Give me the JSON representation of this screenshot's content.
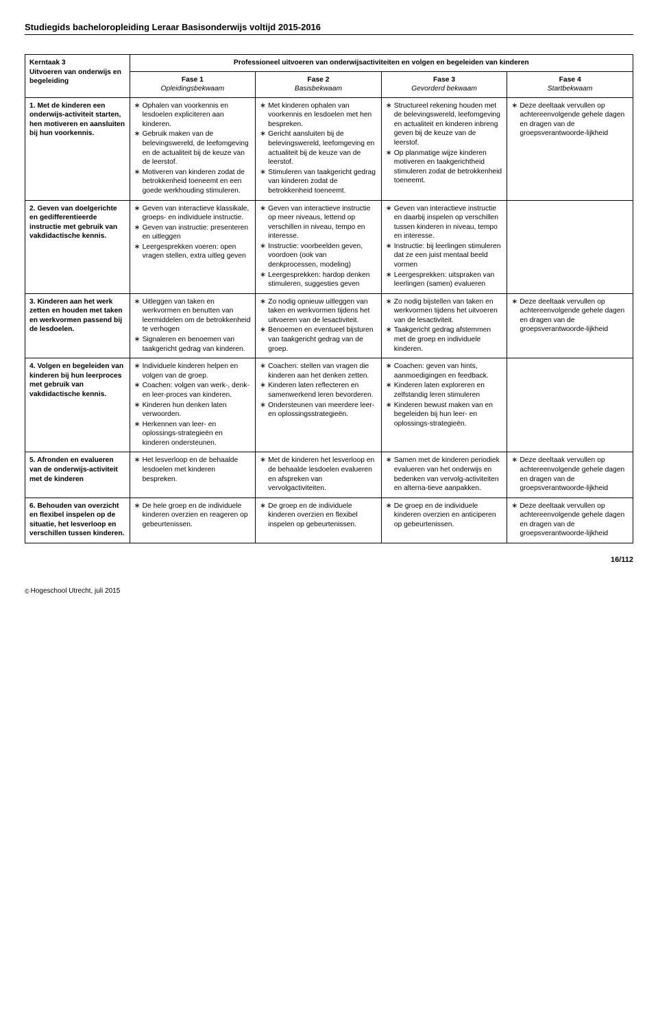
{
  "doc_header": "Studiegids bacheloropleiding Leraar Basisonderwijs voltijd 2015-2016",
  "main_header": {
    "task_title_a": "Kerntaak 3",
    "task_title_b": "Uitvoeren van onderwijs en begeleiding",
    "overhead": "Professioneel uitvoeren van onderwijsactiviteiten en volgen en begeleiden van kinderen",
    "phases": [
      {
        "num": "Fase 1",
        "sub": "Opleidingsbekwaam"
      },
      {
        "num": "Fase 2",
        "sub": "Basisbekwaam"
      },
      {
        "num": "Fase 3",
        "sub": "Gevorderd bekwaam"
      },
      {
        "num": "Fase 4",
        "sub": "Startbekwaam"
      }
    ]
  },
  "rows": [
    {
      "label": "1. Met de kinderen een onderwijs-activiteit starten, hen motiveren en aansluiten bij hun voorkennis.",
      "c1": [
        "Ophalen van voorkennis en lesdoelen expliciteren aan kinderen.",
        "Gebruik maken van de belevingswereld, de leefomgeving en de actualiteit bij de keuze van de leerstof.",
        "Motiveren van kinderen zodat de betrokkenheid toeneemt en een goede werkhouding stimuleren."
      ],
      "c2": [
        "Met kinderen ophalen van voorkennis en lesdoelen met hen bespreken.",
        "Gericht aansluiten bij de belevingswereld, leefomgeving en actualiteit bij de keuze van de leerstof.",
        "Stimuleren van taakgericht gedrag van kinderen zodat de betrokkenheid toeneemt."
      ],
      "c3": [
        "Structureel rekening houden met de belevingswereld, leefomgeving en actualiteit en kinderen inbreng geven bij de keuze van de leerstof.",
        "Op planmatige wijze kinderen motiveren en taakgerichtheid stimuleren zodat de betrokkenheid toeneemt."
      ],
      "c4": [
        "Deze deeltaak vervullen op achtereenvolgende gehele dagen en dragen van de groepsverantwoorde-lijkheid"
      ]
    },
    {
      "label": "2. Geven van doelgerichte en gedifferentieerde instructie met gebruik van vakdidactische kennis.",
      "c1": [
        "Geven van interactieve klassikale, groeps- en individuele instructie.",
        "Geven van instructie: presenteren en uitleggen",
        "Leergesprekken voeren: open vragen stellen, extra uitleg geven"
      ],
      "c2": [
        "Geven van interactieve instructie op meer niveaus, lettend op verschillen in niveau, tempo en interesse.",
        "Instructie: voorbeelden geven, voordoen (ook van denkprocessen, modeling)",
        "Leergesprekken: hardop denken stimuleren, suggesties geven"
      ],
      "c3": [
        "Geven van interactieve instructie en daarbij inspelen op verschillen tussen kinderen in niveau, tempo en interesse.",
        "Instructie: bij leerlingen stimuleren dat ze een juist mentaal beeld vormen",
        "Leergesprekken: uitspraken van leerlingen (samen) evalueren"
      ],
      "c4": []
    },
    {
      "label": "3. Kinderen aan het werk zetten en houden met taken en werkvormen passend bij de lesdoelen.",
      "c1": [
        "Uitleggen van taken en werkvormen en benutten van leermiddelen om de betrokkenheid te verhogen",
        "Signaleren en benoemen van taakgericht gedrag van kinderen."
      ],
      "c2": [
        "Zo nodig opnieuw uitleggen van taken en werkvormen tijdens het uitvoeren van de lesactiviteit.",
        "Benoemen en eventueel bijsturen van taakgericht gedrag van de groep."
      ],
      "c3": [
        "Zo nodig bijstellen van taken en werkvormen tijdens het uitvoeren van de lesactiviteit.",
        "Taakgericht gedrag afstemmen met de groep en individuele kinderen."
      ],
      "c4": [
        "Deze deeltaak vervullen op achtereenvolgende gehele dagen en dragen van de groepsverantwoorde-lijkheid"
      ]
    },
    {
      "label": "4. Volgen en begeleiden van kinderen bij hun leerproces met gebruik van vakdidactische kennis.",
      "c1": [
        "Individuele kinderen helpen en volgen van de groep.",
        "Coachen: volgen van werk-, denk- en leer-proces van kinderen.",
        "Kinderen hun denken laten verwoorden.",
        "Herkennen van leer- en oplossings-strategieën en kinderen ondersteunen."
      ],
      "c2": [
        "Coachen: stellen van vragen die kinderen aan het denken zetten.",
        "Kinderen laten reflecteren en samenwerkend leren bevorderen.",
        "Ondersteunen van meerdere leer- en oplossingsstrategieën."
      ],
      "c3": [
        "Coachen: geven van hints, aanmoedigingen en feedback.",
        "Kinderen laten exploreren en zelfstandig leren stimuleren",
        "Kinderen bewust maken van en begeleiden bij hun leer- en oplossings-strategieën."
      ],
      "c4": []
    },
    {
      "label": "5. Afronden en evalueren van de onderwijs-activiteit met de kinderen",
      "c1": [
        "Het lesverloop en de behaalde lesdoelen met kinderen bespreken."
      ],
      "c2": [
        "Met de kinderen het lesverloop en de behaalde lesdoelen evalueren en afspreken van vervolgactiviteiten."
      ],
      "c3": [
        "Samen met de kinderen periodiek evalueren van het onderwijs en bedenken van vervolg-activiteiten en alterna-tieve aanpakken."
      ],
      "c4": [
        "Deze deeltaak vervullen op achtereenvolgende gehele dagen en dragen van de groepsverantwoorde-lijkheid"
      ]
    },
    {
      "label": "6. Behouden van overzicht en flexibel inspelen op de situatie, het lesverloop en verschillen tussen kinderen.",
      "c1": [
        "De hele groep en de individuele kinderen overzien en reageren op gebeurtenissen."
      ],
      "c2": [
        "De groep en de individuele kinderen overzien en flexibel inspelen op gebeurtenissen."
      ],
      "c3": [
        "De groep en de individuele kinderen overzien en anticiperen op gebeurtenissen."
      ],
      "c4": [
        "Deze deeltaak vervullen op achtereenvolgende gehele dagen en dragen van de groepsverantwoorde-lijkheid"
      ]
    }
  ],
  "footer": {
    "pagenum": "16/112",
    "copyright": "Hogeschool Utrecht, juli 2015"
  }
}
